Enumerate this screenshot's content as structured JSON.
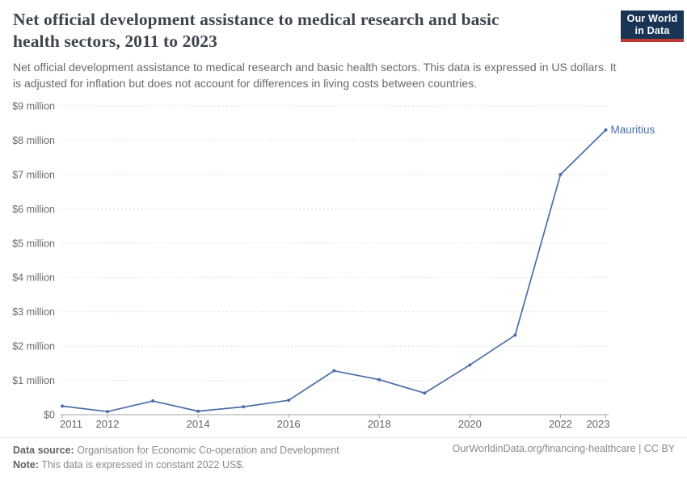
{
  "header": {
    "title_lines": [
      "Net official development assistance to medical research and basic",
      "health sectors, 2011 to 2023"
    ],
    "subtitle_lines": [
      "Net official development assistance to medical research and basic health sectors. This data is expressed in US dollars. It",
      "is adjusted for inflation but does not account for differences in living costs between countries."
    ],
    "logo": {
      "line1": "Our World",
      "line2": "in Data",
      "bg_color": "#1a3455",
      "accent_color": "#bc3a31",
      "text_color": "#ffffff"
    }
  },
  "chart_data": {
    "type": "line",
    "title": "Net official development assistance to medical research and basic health sectors, 2011 to 2023",
    "xlabel": "",
    "ylabel": "",
    "values_unit": "million constant 2022 US$",
    "xlim": [
      2011,
      2023
    ],
    "ylim": [
      0,
      9
    ],
    "grid": "horizontal dashed",
    "legend_position": "end-of-line label",
    "x_ticks": [
      2011,
      2012,
      2014,
      2016,
      2018,
      2020,
      2022,
      2023
    ],
    "y_ticks": [
      {
        "value": 0,
        "label": "$0"
      },
      {
        "value": 1,
        "label": "$1 million"
      },
      {
        "value": 2,
        "label": "$2 million"
      },
      {
        "value": 3,
        "label": "$3 million"
      },
      {
        "value": 4,
        "label": "$4 million"
      },
      {
        "value": 5,
        "label": "$5 million"
      },
      {
        "value": 6,
        "label": "$6 million"
      },
      {
        "value": 7,
        "label": "$7 million"
      },
      {
        "value": 8,
        "label": "$8 million"
      },
      {
        "value": 9,
        "label": "$9 million"
      }
    ],
    "series": [
      {
        "name": "Mauritius",
        "color": "#4c6da8",
        "x": [
          2011,
          2012,
          2013,
          2014,
          2015,
          2016,
          2017,
          2018,
          2019,
          2020,
          2021,
          2022,
          2023
        ],
        "values": [
          0.25,
          0.09,
          0.4,
          0.1,
          0.23,
          0.42,
          1.28,
          1.02,
          0.63,
          1.45,
          2.32,
          7.0,
          8.3
        ]
      }
    ],
    "colors": {
      "gridline": "#dedede",
      "axis": "#a6a6a6",
      "y_tick_text": "#6b6b6b",
      "x_tick_text": "#606468"
    }
  },
  "footer": {
    "source_label": "Data source:",
    "source_text": "Organisation for Economic Co-operation and Development",
    "note_label": "Note:",
    "note_text": "This data is expressed in constant 2022 US$.",
    "citation": "OurWorldinData.org/financing-healthcare | CC BY"
  }
}
